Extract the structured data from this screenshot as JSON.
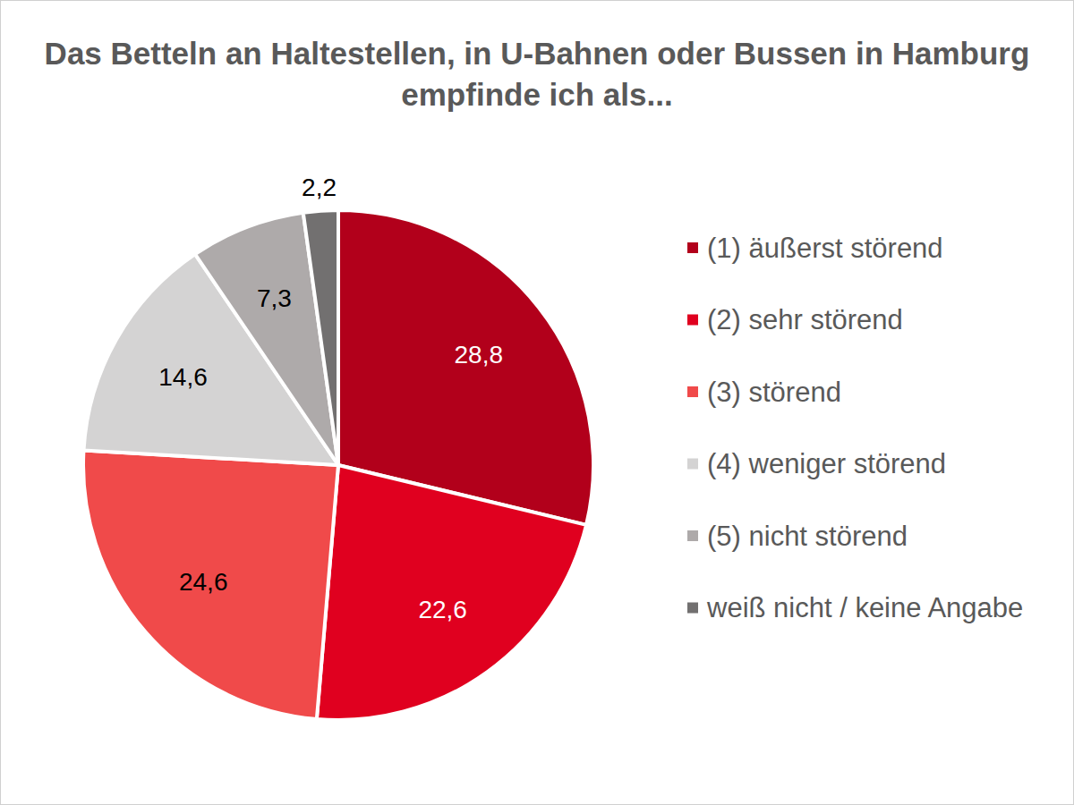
{
  "chart_data": {
    "type": "pie",
    "title": "Das Betteln an Haltestellen, in U-Bahnen oder Bussen in Hamburg empfinde ich als...",
    "categories": [
      "(1) äußerst störend",
      "(2) sehr störend",
      "(3) störend",
      "(4) weniger störend",
      "(5) nicht störend",
      "weiß nicht / keine Angabe"
    ],
    "values": [
      28.8,
      22.6,
      24.6,
      14.6,
      7.3,
      2.2
    ],
    "value_labels": [
      "28,8",
      "22,6",
      "24,6",
      "14,6",
      "7,3",
      "2,2"
    ],
    "colors": [
      "#b2001b",
      "#e0001f",
      "#f04a4a",
      "#d4d3d3",
      "#aeaaaa",
      "#727070"
    ],
    "data_labels": true,
    "legend": "right"
  }
}
